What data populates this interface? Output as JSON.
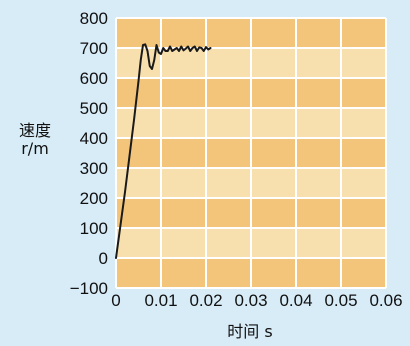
{
  "chart_data": {
    "type": "line",
    "title": "",
    "xlabel": "时间 s",
    "ylabel_line1": "速度",
    "ylabel_line2": "r/m",
    "xlim": [
      0,
      0.06
    ],
    "ylim": [
      -100,
      800
    ],
    "x_ticks": [
      0,
      0.01,
      0.02,
      0.03,
      0.04,
      0.05,
      0.06
    ],
    "x_tick_labels": [
      "0",
      "0.01",
      "0.02",
      "0.03",
      "0.04",
      "0.05",
      "0.06"
    ],
    "y_ticks": [
      -100,
      0,
      100,
      200,
      300,
      400,
      500,
      600,
      700,
      800
    ],
    "y_tick_labels": [
      "−100",
      "0",
      "100",
      "200",
      "300",
      "400",
      "500",
      "600",
      "700",
      "800"
    ],
    "grid": true,
    "legend": "none",
    "colors": {
      "page_background": "#d8ecf8",
      "band_dark": "#f2c57a",
      "band_light": "#f8e0ae",
      "grid_line": "#ffffff",
      "series_line": "#1a1a1a"
    },
    "series": [
      {
        "x": [
          0.0,
          0.001,
          0.002,
          0.003,
          0.004,
          0.005,
          0.0055,
          0.006,
          0.0065,
          0.007,
          0.0075,
          0.008,
          0.0085,
          0.009,
          0.0095,
          0.01,
          0.0105,
          0.011,
          0.0115,
          0.012,
          0.0125,
          0.013,
          0.0135,
          0.014,
          0.0145,
          0.015,
          0.0155,
          0.016,
          0.0165,
          0.017,
          0.0175,
          0.018,
          0.0185,
          0.019,
          0.0195,
          0.02,
          0.0205,
          0.021
        ],
        "y": [
          0,
          110,
          220,
          340,
          460,
          590,
          660,
          710,
          712,
          690,
          640,
          630,
          660,
          710,
          685,
          680,
          700,
          690,
          690,
          705,
          690,
          695,
          700,
          690,
          705,
          692,
          698,
          705,
          690,
          700,
          705,
          690,
          702,
          700,
          690,
          703,
          695,
          700
        ]
      }
    ]
  }
}
